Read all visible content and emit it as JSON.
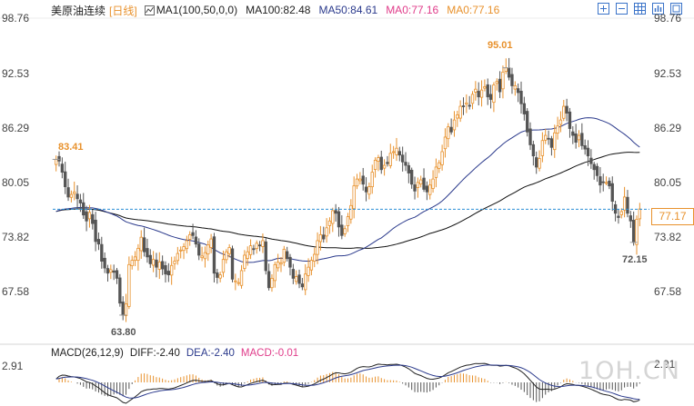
{
  "header": {
    "title": "美原油连续",
    "period": "[日线]",
    "ma_main": "MA1(100,50,0,0)",
    "ma100": "MA100:82.48",
    "ma50": "MA50:84.61",
    "ma0_a": "MA0:77.16",
    "ma0_b": "MA0:77.16"
  },
  "colors": {
    "up": "#e8912c",
    "down": "#555555",
    "ma50": "#2b3a8c",
    "ma100": "#111111",
    "ma0a": "#e03c8a",
    "ma0b": "#e8912c",
    "dashed": "#2a8fd6",
    "high_low": "#e8912c",
    "low_annot": "#555555"
  },
  "toolbar": [
    "zoom-in-icon",
    "zoom-out-icon",
    "grid-icon",
    "bar-chart-icon",
    "fullscreen-icon"
  ],
  "y_axis": {
    "labels": [
      "98.76",
      "92.53",
      "86.29",
      "80.05",
      "73.82",
      "67.58"
    ],
    "values": [
      98.76,
      92.53,
      86.29,
      80.05,
      73.82,
      67.58
    ]
  },
  "current_price": "77.17",
  "annotations": {
    "high": "95.01",
    "left_high": "83.41",
    "low": "63.80",
    "recent_low": "72.15"
  },
  "macd": {
    "label": "MACD(26,12,9)",
    "diff": "DIFF:-2.40",
    "dea": "DEA:-2.40",
    "macd": "MACD:-0.01",
    "axis_label": "2.91",
    "axis_label_right": "2.91"
  },
  "watermark": "1OH.CN",
  "chart_data": {
    "type": "candlestick",
    "title": "美原油连续 [日线]",
    "ylim": [
      61.5,
      99.5
    ],
    "reference_line": 77.17,
    "close": [
      83.0,
      82.8,
      81.5,
      79.8,
      78.6,
      78.9,
      79.2,
      78.4,
      77.9,
      76.5,
      75.8,
      76.8,
      75.5,
      73.4,
      73.1,
      71.1,
      70.3,
      69.7,
      70.1,
      69.8,
      69.1,
      66.2,
      64.8,
      66.1,
      70.7,
      71.2,
      71.6,
      72.6,
      73.9,
      72.2,
      71.6,
      70.8,
      71.3,
      70.4,
      71.0,
      70.2,
      69.6,
      69.5,
      70.6,
      71.1,
      72.0,
      72.4,
      72.8,
      73.5,
      74.2,
      74.1,
      73.1,
      71.8,
      71.7,
      72.1,
      73.0,
      73.7,
      69.7,
      69.2,
      69.5,
      71.3,
      72.2,
      72.7,
      69.0,
      68.8,
      68.6,
      70.0,
      71.8,
      72.2,
      72.9,
      72.5,
      73.2,
      72.9,
      73.5,
      70.0,
      68.0,
      69.1,
      70.7,
      71.0,
      70.9,
      72.5,
      71.4,
      70.4,
      69.1,
      69.3,
      68.5,
      68.1,
      69.6,
      70.4,
      71.2,
      71.9,
      73.5,
      74.2,
      73.7,
      75.0,
      75.8,
      77.0,
      76.7,
      75.1,
      74.1,
      74.9,
      76.3,
      77.6,
      79.9,
      80.7,
      80.7,
      80.1,
      79.2,
      79.8,
      81.5,
      82.9,
      83.2,
      81.8,
      82.3,
      82.5,
      83.7,
      83.9,
      84.3,
      83.5,
      82.7,
      82.3,
      81.4,
      80.1,
      79.3,
      80.3,
      80.6,
      79.5,
      79.2,
      80.0,
      80.7,
      82.1,
      82.6,
      83.9,
      85.6,
      86.8,
      86.2,
      87.6,
      88.2,
      89.2,
      89.2,
      89.6,
      89.3,
      90.6,
      91.2,
      90.3,
      91.1,
      91.5,
      90.3,
      90.0,
      91.7,
      92.1,
      90.9,
      93.2,
      93.7,
      92.6,
      91.6,
      91.6,
      90.8,
      89.5,
      88.3,
      86.2,
      84.7,
      83.4,
      82.1,
      83.1,
      85.2,
      85.8,
      85.4,
      84.4,
      86.1,
      86.9,
      87.6,
      89.2,
      88.4,
      86.6,
      85.8,
      85.0,
      85.8,
      84.6,
      84.2,
      83.4,
      82.5,
      81.8,
      81.1,
      80.0,
      80.3,
      80.3,
      79.9,
      78.1,
      76.7,
      76.2,
      76.9,
      78.6,
      76.7,
      75.8,
      73.3,
      76.0,
      77.2
    ]
  }
}
